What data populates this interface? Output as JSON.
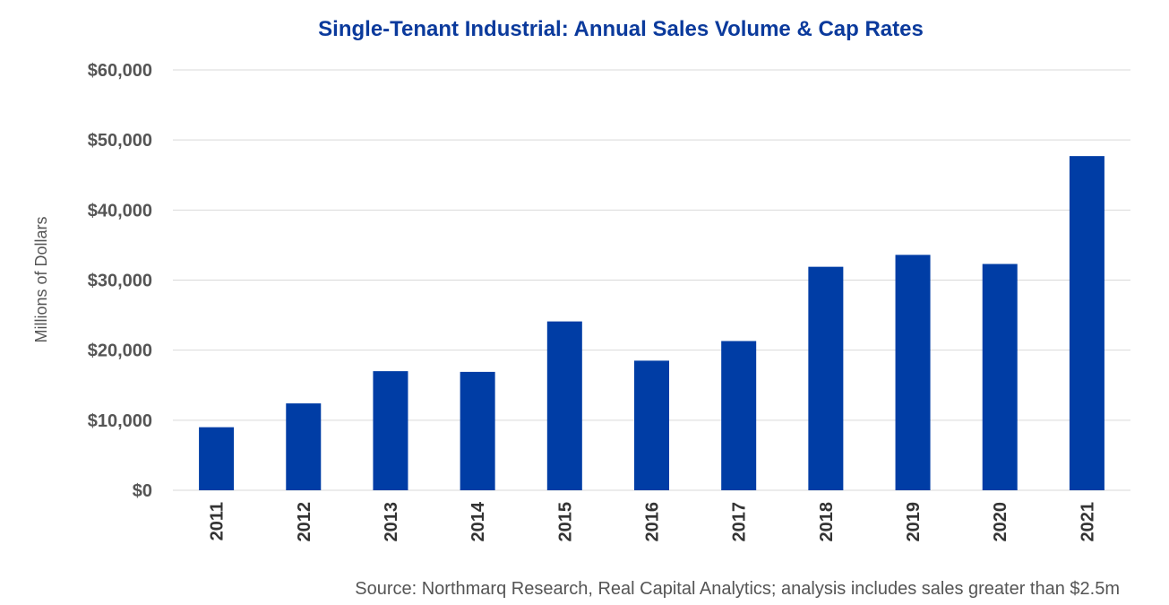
{
  "chart_data": {
    "type": "bar",
    "title": "Single-Tenant Industrial: Annual Sales Volume & Cap Rates",
    "ylabel": "Millions of Dollars",
    "xlabel": "",
    "source": "Source: Northmarq Research, Real Capital Analytics; analysis includes sales greater than $2.5m",
    "categories": [
      "2011",
      "2012",
      "2013",
      "2014",
      "2015",
      "2016",
      "2017",
      "2018",
      "2019",
      "2020",
      "2021"
    ],
    "values": [
      9000,
      12400,
      17000,
      16900,
      24100,
      18500,
      21300,
      31900,
      33600,
      32300,
      47700
    ],
    "ylim": [
      0,
      60000
    ],
    "yticks": [
      0,
      10000,
      20000,
      30000,
      40000,
      50000,
      60000
    ],
    "ytick_labels": [
      "$0",
      "$10,000",
      "$20,000",
      "$30,000",
      "$40,000",
      "$50,000",
      "$60,000"
    ],
    "grid": true,
    "bar_color": "#003da5",
    "title_color": "#0b3a9c"
  }
}
